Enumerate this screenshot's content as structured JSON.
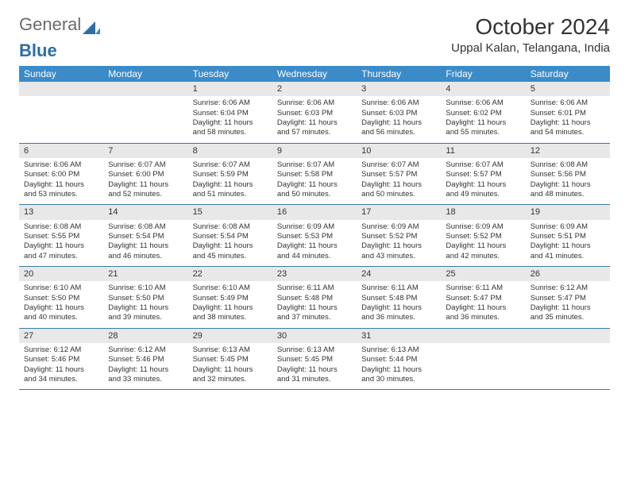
{
  "brand": {
    "part1": "General",
    "part2": "Blue",
    "color1": "#6b6b6b",
    "color2": "#2b6ea8"
  },
  "title": "October 2024",
  "location": "Uppal Kalan, Telangana, India",
  "header_bg": "#3b8bc9",
  "header_text_color": "#ffffff",
  "row_border_color": "#3b7aa7",
  "daynum_bg": "#e8e8e8",
  "text_color": "#333333",
  "day_names": [
    "Sunday",
    "Monday",
    "Tuesday",
    "Wednesday",
    "Thursday",
    "Friday",
    "Saturday"
  ],
  "weeks": [
    [
      null,
      null,
      {
        "n": "1",
        "sr": "Sunrise: 6:06 AM",
        "ss": "Sunset: 6:04 PM",
        "dl": "Daylight: 11 hours and 58 minutes."
      },
      {
        "n": "2",
        "sr": "Sunrise: 6:06 AM",
        "ss": "Sunset: 6:03 PM",
        "dl": "Daylight: 11 hours and 57 minutes."
      },
      {
        "n": "3",
        "sr": "Sunrise: 6:06 AM",
        "ss": "Sunset: 6:03 PM",
        "dl": "Daylight: 11 hours and 56 minutes."
      },
      {
        "n": "4",
        "sr": "Sunrise: 6:06 AM",
        "ss": "Sunset: 6:02 PM",
        "dl": "Daylight: 11 hours and 55 minutes."
      },
      {
        "n": "5",
        "sr": "Sunrise: 6:06 AM",
        "ss": "Sunset: 6:01 PM",
        "dl": "Daylight: 11 hours and 54 minutes."
      }
    ],
    [
      {
        "n": "6",
        "sr": "Sunrise: 6:06 AM",
        "ss": "Sunset: 6:00 PM",
        "dl": "Daylight: 11 hours and 53 minutes."
      },
      {
        "n": "7",
        "sr": "Sunrise: 6:07 AM",
        "ss": "Sunset: 6:00 PM",
        "dl": "Daylight: 11 hours and 52 minutes."
      },
      {
        "n": "8",
        "sr": "Sunrise: 6:07 AM",
        "ss": "Sunset: 5:59 PM",
        "dl": "Daylight: 11 hours and 51 minutes."
      },
      {
        "n": "9",
        "sr": "Sunrise: 6:07 AM",
        "ss": "Sunset: 5:58 PM",
        "dl": "Daylight: 11 hours and 50 minutes."
      },
      {
        "n": "10",
        "sr": "Sunrise: 6:07 AM",
        "ss": "Sunset: 5:57 PM",
        "dl": "Daylight: 11 hours and 50 minutes."
      },
      {
        "n": "11",
        "sr": "Sunrise: 6:07 AM",
        "ss": "Sunset: 5:57 PM",
        "dl": "Daylight: 11 hours and 49 minutes."
      },
      {
        "n": "12",
        "sr": "Sunrise: 6:08 AM",
        "ss": "Sunset: 5:56 PM",
        "dl": "Daylight: 11 hours and 48 minutes."
      }
    ],
    [
      {
        "n": "13",
        "sr": "Sunrise: 6:08 AM",
        "ss": "Sunset: 5:55 PM",
        "dl": "Daylight: 11 hours and 47 minutes."
      },
      {
        "n": "14",
        "sr": "Sunrise: 6:08 AM",
        "ss": "Sunset: 5:54 PM",
        "dl": "Daylight: 11 hours and 46 minutes."
      },
      {
        "n": "15",
        "sr": "Sunrise: 6:08 AM",
        "ss": "Sunset: 5:54 PM",
        "dl": "Daylight: 11 hours and 45 minutes."
      },
      {
        "n": "16",
        "sr": "Sunrise: 6:09 AM",
        "ss": "Sunset: 5:53 PM",
        "dl": "Daylight: 11 hours and 44 minutes."
      },
      {
        "n": "17",
        "sr": "Sunrise: 6:09 AM",
        "ss": "Sunset: 5:52 PM",
        "dl": "Daylight: 11 hours and 43 minutes."
      },
      {
        "n": "18",
        "sr": "Sunrise: 6:09 AM",
        "ss": "Sunset: 5:52 PM",
        "dl": "Daylight: 11 hours and 42 minutes."
      },
      {
        "n": "19",
        "sr": "Sunrise: 6:09 AM",
        "ss": "Sunset: 5:51 PM",
        "dl": "Daylight: 11 hours and 41 minutes."
      }
    ],
    [
      {
        "n": "20",
        "sr": "Sunrise: 6:10 AM",
        "ss": "Sunset: 5:50 PM",
        "dl": "Daylight: 11 hours and 40 minutes."
      },
      {
        "n": "21",
        "sr": "Sunrise: 6:10 AM",
        "ss": "Sunset: 5:50 PM",
        "dl": "Daylight: 11 hours and 39 minutes."
      },
      {
        "n": "22",
        "sr": "Sunrise: 6:10 AM",
        "ss": "Sunset: 5:49 PM",
        "dl": "Daylight: 11 hours and 38 minutes."
      },
      {
        "n": "23",
        "sr": "Sunrise: 6:11 AM",
        "ss": "Sunset: 5:48 PM",
        "dl": "Daylight: 11 hours and 37 minutes."
      },
      {
        "n": "24",
        "sr": "Sunrise: 6:11 AM",
        "ss": "Sunset: 5:48 PM",
        "dl": "Daylight: 11 hours and 36 minutes."
      },
      {
        "n": "25",
        "sr": "Sunrise: 6:11 AM",
        "ss": "Sunset: 5:47 PM",
        "dl": "Daylight: 11 hours and 36 minutes."
      },
      {
        "n": "26",
        "sr": "Sunrise: 6:12 AM",
        "ss": "Sunset: 5:47 PM",
        "dl": "Daylight: 11 hours and 35 minutes."
      }
    ],
    [
      {
        "n": "27",
        "sr": "Sunrise: 6:12 AM",
        "ss": "Sunset: 5:46 PM",
        "dl": "Daylight: 11 hours and 34 minutes."
      },
      {
        "n": "28",
        "sr": "Sunrise: 6:12 AM",
        "ss": "Sunset: 5:46 PM",
        "dl": "Daylight: 11 hours and 33 minutes."
      },
      {
        "n": "29",
        "sr": "Sunrise: 6:13 AM",
        "ss": "Sunset: 5:45 PM",
        "dl": "Daylight: 11 hours and 32 minutes."
      },
      {
        "n": "30",
        "sr": "Sunrise: 6:13 AM",
        "ss": "Sunset: 5:45 PM",
        "dl": "Daylight: 11 hours and 31 minutes."
      },
      {
        "n": "31",
        "sr": "Sunrise: 6:13 AM",
        "ss": "Sunset: 5:44 PM",
        "dl": "Daylight: 11 hours and 30 minutes."
      },
      null,
      null
    ]
  ]
}
